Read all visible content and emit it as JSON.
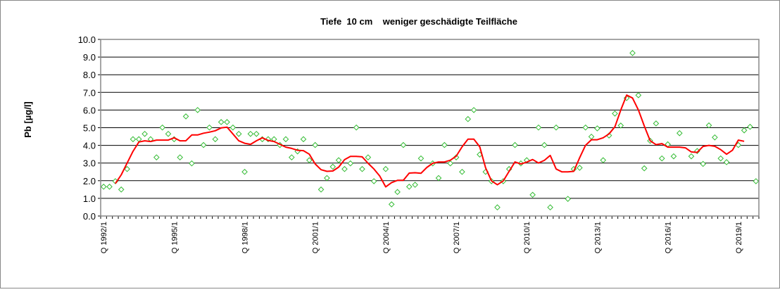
{
  "chart_data": {
    "type": "line",
    "title": "Tiefe  10 cm    weniger geschädigte Teilfläche",
    "xlabel": "",
    "ylabel": "Pb [µg/l]",
    "ylim": [
      0,
      10
    ],
    "yticks": [
      "0.0",
      "1.0",
      "2.0",
      "3.0",
      "4.0",
      "5.0",
      "6.0",
      "7.0",
      "8.0",
      "9.0",
      "10.0"
    ],
    "grid": true,
    "legend": "none",
    "x_tick_labels": [
      "Q 1992/1",
      "Q 1995/1",
      "Q 1998/1",
      "Q 2001/1",
      "Q 2004/1",
      "Q 2007/1",
      "Q 2010/1",
      "Q 2013/1",
      "Q 2016/1",
      "Q 2019/1"
    ],
    "categories": [
      "Q 1992/1",
      "Q 1992/2",
      "Q 1992/3",
      "Q 1992/4",
      "Q 1993/1",
      "Q 1993/2",
      "Q 1993/3",
      "Q 1993/4",
      "Q 1994/1",
      "Q 1994/2",
      "Q 1994/3",
      "Q 1994/4",
      "Q 1995/1",
      "Q 1995/2",
      "Q 1995/3",
      "Q 1995/4",
      "Q 1996/1",
      "Q 1996/2",
      "Q 1996/3",
      "Q 1996/4",
      "Q 1997/1",
      "Q 1997/2",
      "Q 1997/3",
      "Q 1997/4",
      "Q 1998/1",
      "Q 1998/2",
      "Q 1998/3",
      "Q 1998/4",
      "Q 1999/1",
      "Q 1999/2",
      "Q 1999/3",
      "Q 1999/4",
      "Q 2000/1",
      "Q 2000/2",
      "Q 2000/3",
      "Q 2000/4",
      "Q 2001/1",
      "Q 2001/2",
      "Q 2001/3",
      "Q 2001/4",
      "Q 2002/1",
      "Q 2002/2",
      "Q 2002/3",
      "Q 2002/4",
      "Q 2003/1",
      "Q 2003/2",
      "Q 2003/3",
      "Q 2003/4",
      "Q 2004/1",
      "Q 2004/2",
      "Q 2004/3",
      "Q 2004/4",
      "Q 2005/1",
      "Q 2005/2",
      "Q 2005/3",
      "Q 2005/4",
      "Q 2006/1",
      "Q 2006/2",
      "Q 2006/3",
      "Q 2006/4",
      "Q 2007/1",
      "Q 2007/2",
      "Q 2007/3",
      "Q 2007/4",
      "Q 2008/1",
      "Q 2008/2",
      "Q 2008/3",
      "Q 2008/4",
      "Q 2009/1",
      "Q 2009/2",
      "Q 2009/3",
      "Q 2009/4",
      "Q 2010/1",
      "Q 2010/2",
      "Q 2010/3",
      "Q 2010/4",
      "Q 2011/1",
      "Q 2011/2",
      "Q 2011/3",
      "Q 2011/4",
      "Q 2012/1",
      "Q 2012/2",
      "Q 2012/3",
      "Q 2012/4",
      "Q 2013/1",
      "Q 2013/2",
      "Q 2013/3",
      "Q 2013/4",
      "Q 2014/1",
      "Q 2014/2",
      "Q 2014/3",
      "Q 2014/4",
      "Q 2015/1",
      "Q 2015/2",
      "Q 2015/3",
      "Q 2015/4",
      "Q 2016/1",
      "Q 2016/2",
      "Q 2016/3",
      "Q 2016/4",
      "Q 2017/1",
      "Q 2017/2",
      "Q 2017/3",
      "Q 2017/4",
      "Q 2018/1",
      "Q 2018/2",
      "Q 2018/3",
      "Q 2018/4",
      "Q 2019/1",
      "Q 2019/2",
      "Q 2019/3",
      "Q 2019/4"
    ],
    "series": [
      {
        "type": "scatter",
        "marker": "hollow-diamond",
        "color": "#33bb33",
        "values": [
          1.66,
          1.66,
          1.97,
          1.5,
          2.66,
          4.35,
          4.35,
          4.65,
          4.35,
          3.32,
          5.01,
          4.65,
          4.35,
          3.32,
          5.64,
          2.98,
          6.0,
          4.02,
          5.01,
          4.35,
          5.32,
          5.32,
          5.01,
          4.65,
          2.5,
          4.65,
          4.65,
          4.35,
          4.35,
          4.35,
          4.02,
          4.35,
          3.32,
          3.66,
          4.35,
          3.16,
          4.02,
          1.5,
          2.15,
          2.79,
          3.16,
          2.66,
          2.98,
          5.01,
          2.66,
          3.32,
          1.97,
          null,
          2.66,
          0.66,
          1.36,
          4.02,
          1.66,
          1.77,
          3.26,
          null,
          2.98,
          2.15,
          4.02,
          2.98,
          3.32,
          2.5,
          5.49,
          6.0,
          3.48,
          2.5,
          1.97,
          0.49,
          1.97,
          2.66,
          4.02,
          2.98,
          3.16,
          1.2,
          5.01,
          4.02,
          0.49,
          5.01,
          null,
          0.97,
          2.66,
          2.73,
          5.01,
          4.49,
          4.96,
          3.16,
          4.56,
          5.8,
          5.12,
          6.68,
          9.23,
          6.84,
          2.7,
          4.26,
          5.24,
          3.26,
          4.06,
          3.38,
          4.69,
          null,
          3.38,
          3.68,
          2.95,
          5.13,
          4.45,
          3.26,
          3.05,
          null,
          4.02,
          4.85,
          5.05,
          1.97
        ]
      },
      {
        "type": "line",
        "color": "#ff0000",
        "values": [
          null,
          null,
          1.84,
          2.33,
          3.0,
          3.66,
          4.19,
          4.26,
          4.22,
          4.3,
          4.3,
          4.3,
          4.43,
          4.26,
          4.26,
          4.59,
          4.59,
          4.69,
          4.75,
          4.83,
          4.99,
          5.03,
          4.65,
          4.26,
          4.12,
          4.06,
          4.26,
          4.43,
          4.28,
          4.22,
          4.06,
          3.9,
          3.83,
          3.72,
          3.7,
          3.5,
          2.95,
          2.62,
          2.53,
          2.55,
          2.77,
          3.19,
          3.38,
          3.38,
          3.35,
          2.99,
          2.66,
          2.26,
          1.65,
          1.89,
          2.02,
          2.02,
          2.43,
          2.45,
          2.42,
          2.75,
          2.99,
          3.06,
          3.06,
          3.16,
          3.39,
          3.92,
          4.35,
          4.35,
          3.92,
          2.73,
          1.99,
          1.77,
          1.99,
          2.53,
          3.06,
          2.95,
          3.05,
          3.2,
          3.0,
          3.15,
          3.43,
          2.66,
          2.5,
          2.5,
          2.53,
          3.3,
          4.0,
          4.32,
          4.32,
          4.43,
          4.65,
          5.05,
          6.0,
          6.85,
          6.68,
          6.0,
          5.1,
          4.26,
          4.04,
          4.1,
          3.9,
          3.9,
          3.9,
          3.86,
          3.63,
          3.6,
          3.94,
          4.0,
          3.95,
          3.76,
          3.5,
          3.72,
          4.3,
          4.23,
          null,
          null
        ]
      }
    ]
  }
}
